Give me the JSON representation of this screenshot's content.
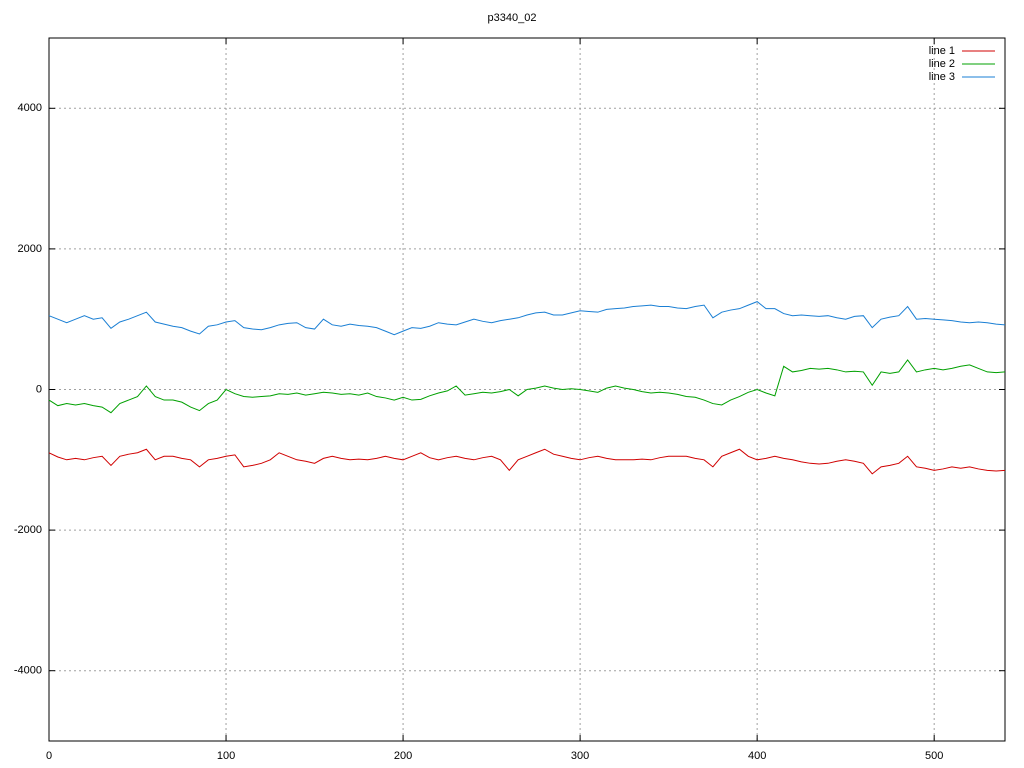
{
  "chart_data": {
    "type": "line",
    "title": "p3340_02",
    "x": [
      0,
      5,
      10,
      15,
      20,
      25,
      30,
      35,
      40,
      45,
      50,
      55,
      60,
      65,
      70,
      75,
      80,
      85,
      90,
      95,
      100,
      105,
      110,
      115,
      120,
      125,
      130,
      135,
      140,
      145,
      150,
      155,
      160,
      165,
      170,
      175,
      180,
      185,
      190,
      195,
      200,
      205,
      210,
      215,
      220,
      225,
      230,
      235,
      240,
      245,
      250,
      255,
      260,
      265,
      270,
      275,
      280,
      285,
      290,
      295,
      300,
      305,
      310,
      315,
      320,
      325,
      330,
      335,
      340,
      345,
      350,
      355,
      360,
      365,
      370,
      375,
      380,
      385,
      390,
      395,
      400,
      405,
      410,
      415,
      420,
      425,
      430,
      435,
      440,
      445,
      450,
      455,
      460,
      465,
      470,
      475,
      480,
      485,
      490,
      495,
      500,
      505,
      510,
      515,
      520,
      525,
      530,
      535,
      540
    ],
    "series": [
      {
        "name": "line 1",
        "color": "#d00000",
        "values": [
          -900,
          -960,
          -1000,
          -980,
          -1000,
          -970,
          -950,
          -1080,
          -950,
          -920,
          -900,
          -850,
          -1000,
          -950,
          -950,
          -980,
          -1000,
          -1100,
          -1000,
          -980,
          -950,
          -930,
          -1100,
          -1080,
          -1050,
          -1000,
          -900,
          -950,
          -1000,
          -1020,
          -1050,
          -980,
          -950,
          -980,
          -1000,
          -990,
          -1000,
          -980,
          -950,
          -980,
          -1000,
          -950,
          -900,
          -970,
          -1000,
          -970,
          -950,
          -980,
          -1000,
          -970,
          -950,
          -1000,
          -1150,
          -1000,
          -950,
          -900,
          -850,
          -920,
          -950,
          -980,
          -1000,
          -970,
          -950,
          -980,
          -1000,
          -1000,
          -1000,
          -990,
          -1000,
          -970,
          -950,
          -950,
          -950,
          -980,
          -1000,
          -1100,
          -950,
          -900,
          -850,
          -950,
          -1000,
          -980,
          -950,
          -980,
          -1000,
          -1030,
          -1050,
          -1060,
          -1050,
          -1020,
          -1000,
          -1020,
          -1050,
          -1200,
          -1100,
          -1080,
          -1050,
          -950,
          -1100,
          -1120,
          -1150,
          -1130,
          -1100,
          -1120,
          -1100,
          -1130,
          -1150,
          -1160,
          -1150
        ]
      },
      {
        "name": "line 2",
        "color": "#00a000",
        "values": [
          -150,
          -230,
          -200,
          -220,
          -200,
          -230,
          -250,
          -330,
          -200,
          -150,
          -100,
          50,
          -100,
          -150,
          -150,
          -180,
          -250,
          -300,
          -200,
          -150,
          0,
          -60,
          -100,
          -110,
          -100,
          -90,
          -60,
          -70,
          -50,
          -80,
          -60,
          -40,
          -50,
          -70,
          -60,
          -80,
          -50,
          -100,
          -120,
          -150,
          -110,
          -150,
          -140,
          -90,
          -50,
          -20,
          50,
          -80,
          -60,
          -40,
          -50,
          -30,
          0,
          -90,
          0,
          20,
          50,
          20,
          0,
          10,
          0,
          -20,
          -40,
          20,
          50,
          20,
          0,
          -30,
          -50,
          -40,
          -50,
          -70,
          -100,
          -110,
          -150,
          -200,
          -220,
          -150,
          -100,
          -40,
          0,
          -50,
          -90,
          330,
          250,
          270,
          300,
          290,
          300,
          280,
          250,
          260,
          250,
          60,
          250,
          230,
          250,
          420,
          250,
          280,
          300,
          280,
          300,
          330,
          350,
          300,
          250,
          240,
          250
        ]
      },
      {
        "name": "line 3",
        "color": "#1a7fd4",
        "values": [
          1050,
          1000,
          950,
          1000,
          1050,
          1000,
          1020,
          870,
          960,
          1000,
          1050,
          1100,
          960,
          930,
          900,
          880,
          830,
          790,
          900,
          920,
          960,
          980,
          880,
          860,
          850,
          880,
          920,
          940,
          950,
          880,
          860,
          1000,
          920,
          900,
          930,
          910,
          900,
          880,
          830,
          780,
          830,
          880,
          870,
          900,
          950,
          930,
          920,
          960,
          1000,
          970,
          950,
          980,
          1000,
          1020,
          1060,
          1090,
          1100,
          1060,
          1060,
          1090,
          1120,
          1110,
          1100,
          1140,
          1150,
          1160,
          1180,
          1190,
          1200,
          1180,
          1180,
          1160,
          1150,
          1180,
          1200,
          1020,
          1100,
          1130,
          1150,
          1200,
          1250,
          1150,
          1150,
          1080,
          1050,
          1060,
          1050,
          1040,
          1050,
          1020,
          1000,
          1040,
          1050,
          880,
          1000,
          1030,
          1050,
          1180,
          1000,
          1010,
          1000,
          990,
          980,
          960,
          950,
          960,
          950,
          930,
          920
        ]
      }
    ],
    "xlim": [
      0,
      540
    ],
    "xticks": [
      0,
      100,
      200,
      300,
      400,
      500
    ],
    "ylim": [
      -5000,
      5000
    ],
    "yticks": [
      -4000,
      -2000,
      0,
      2000,
      4000
    ],
    "grid": true,
    "legend": "top-right"
  }
}
